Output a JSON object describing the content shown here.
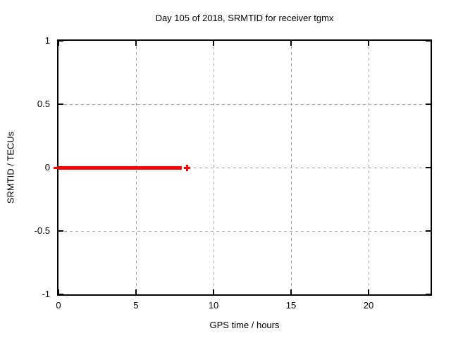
{
  "window": {
    "background": "#ffffff"
  },
  "chart_data": {
    "type": "scatter",
    "title": "Day 105 of 2018, SRMTID for receiver tgmx",
    "xlabel": "GPS time / hours",
    "ylabel": "SRMTID / TECUs",
    "xlim": [
      0,
      24
    ],
    "ylim": [
      -1,
      1
    ],
    "xticks": {
      "values": [
        0,
        5,
        10,
        15,
        20
      ],
      "labels": [
        "0",
        "5",
        "10",
        "15",
        "20"
      ]
    },
    "yticks": {
      "values": [
        -1,
        -0.5,
        0,
        0.5,
        1
      ],
      "labels": [
        "-1",
        "-0.5",
        "0",
        "0.5",
        "1"
      ]
    },
    "grid": {
      "visible": true,
      "style": "dashed",
      "color": "#a6a6a6"
    },
    "legend": "none",
    "axis_color": "#000000",
    "series": [
      {
        "name": "SRMTID",
        "marker": "+",
        "color": "#ff0000",
        "description": "Dense overlapping + markers forming a solid band at y=0 from t=0 to t~7.95 h, plus one isolated point near t=8.3 h",
        "band": {
          "x_start": 0,
          "x_end": 7.95,
          "y": 0
        },
        "points": [
          {
            "x": 8.3,
            "y": 0
          }
        ]
      }
    ]
  }
}
